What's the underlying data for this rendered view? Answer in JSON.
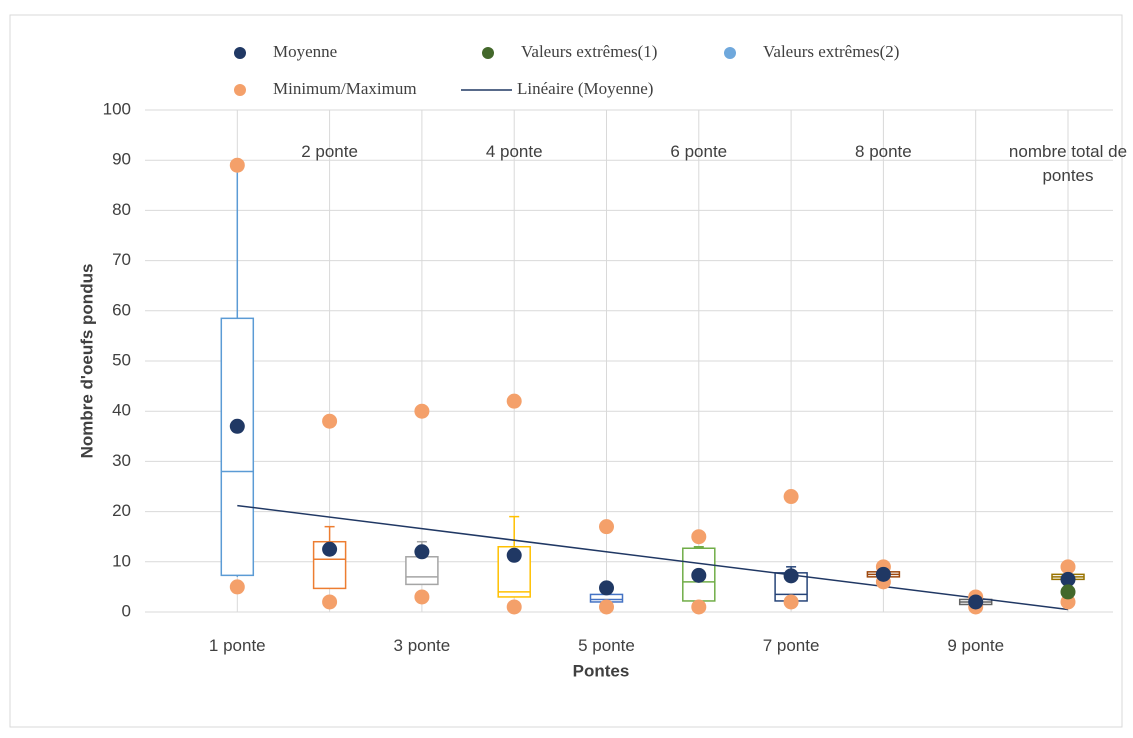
{
  "chart_data": {
    "type": "box",
    "xlabel": "Pontes",
    "ylabel": "Nombre d'oeufs pondus",
    "ylim": [
      0,
      100
    ],
    "yticks": [
      0,
      10,
      20,
      30,
      40,
      50,
      60,
      70,
      80,
      90,
      100
    ],
    "grid": true,
    "categories": [
      "1 ponte",
      "2 ponte",
      "3 ponte",
      "4 ponte",
      "5 ponte",
      "6 ponte",
      "7 ponte",
      "8 ponte",
      "9 ponte",
      "nombre total de pontes"
    ],
    "boxes": [
      {
        "q1": 7.3,
        "median": 28,
        "q3": 58.5,
        "whisker_low": 7,
        "whisker_high": 88,
        "color": "#5b9bd5"
      },
      {
        "q1": 4.7,
        "median": 10.5,
        "q3": 14,
        "whisker_low": 4.7,
        "whisker_high": 17,
        "color": "#ed7d31"
      },
      {
        "q1": 5.5,
        "median": 7,
        "q3": 11,
        "whisker_low": 5.5,
        "whisker_high": 14,
        "color": "#a5a5a5"
      },
      {
        "q1": 3,
        "median": 4,
        "q3": 13,
        "whisker_low": 3,
        "whisker_high": 19,
        "color": "#ffc000"
      },
      {
        "q1": 2,
        "median": 2.5,
        "q3": 3.5,
        "whisker_low": 2,
        "whisker_high": 3.5,
        "color": "#4472c4"
      },
      {
        "q1": 2.2,
        "median": 6,
        "q3": 12.7,
        "whisker_low": 2.2,
        "whisker_high": 13,
        "color": "#70ad47"
      },
      {
        "q1": 2.2,
        "median": 3.5,
        "q3": 7.8,
        "whisker_low": 2.2,
        "whisker_high": 9,
        "color": "#264478"
      },
      {
        "q1": 7,
        "median": 7.5,
        "q3": 8,
        "whisker_low": 7,
        "whisker_high": 8,
        "color": "#9e480e"
      },
      {
        "q1": 1.5,
        "median": 2,
        "q3": 2.5,
        "whisker_low": 1.5,
        "whisker_high": 2.5,
        "color": "#636363"
      },
      {
        "q1": 6.5,
        "median": 7,
        "q3": 7.5,
        "whisker_low": 6.5,
        "whisker_high": 7.5,
        "color": "#997300"
      }
    ],
    "series": [
      {
        "name": "Moyenne",
        "color": "#203864",
        "values": [
          37,
          12.5,
          12,
          11.3,
          4.8,
          7.3,
          7.2,
          7.5,
          2,
          6.5
        ]
      },
      {
        "name": "Valeurs extrêmes(1)",
        "color": "#43682b",
        "values": [
          null,
          null,
          null,
          null,
          null,
          null,
          null,
          null,
          null,
          4
        ]
      },
      {
        "name": "Valeurs extrêmes(2)",
        "color": "#6fa8dc",
        "values": [
          null,
          null,
          null,
          null,
          null,
          null,
          null,
          null,
          null,
          null
        ]
      },
      {
        "name": "Minimum/Maximum",
        "color": "#f4a06a",
        "values": [
          5,
          2,
          3,
          1,
          1,
          1,
          2,
          6,
          1,
          2
        ]
      },
      {
        "name": "Minimum/Maximum",
        "color": "#f4a06a",
        "values": [
          89,
          38,
          40,
          42,
          17,
          15,
          23,
          9,
          3,
          9
        ]
      }
    ],
    "trend": {
      "name": "Linéaire (Moyenne)",
      "color": "#203864",
      "values": [
        21.2,
        0.5
      ]
    }
  }
}
